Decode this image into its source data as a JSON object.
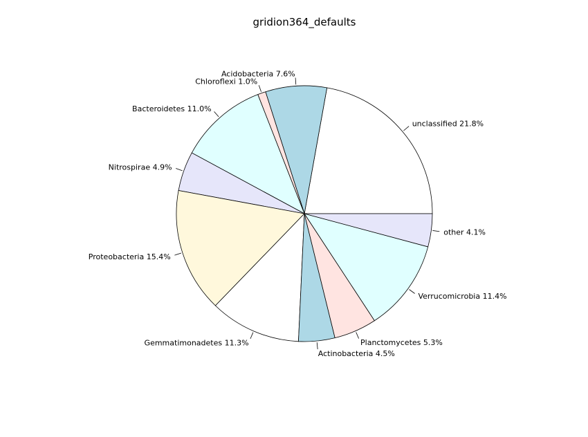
{
  "chart_data": {
    "type": "pie",
    "title": "gridion364_defaults",
    "start_angle_deg": 0,
    "direction": "counterclockwise",
    "slices": [
      {
        "label": "unclassified 21.8%",
        "value": 21.8,
        "color": "#ffffff"
      },
      {
        "label": "Acidobacteria 7.6%",
        "value": 7.6,
        "color": "#add8e6"
      },
      {
        "label": "Chloroflexi 1.0%",
        "value": 1.0,
        "color": "#ffe4e1"
      },
      {
        "label": "Bacteroidetes 11.0%",
        "value": 11.0,
        "color": "#e0ffff"
      },
      {
        "label": "Nitrospirae 4.9%",
        "value": 4.9,
        "color": "#e6e6fa"
      },
      {
        "label": "Proteobacteria 15.4%",
        "value": 15.4,
        "color": "#fff8dc"
      },
      {
        "label": "Gemmatimonadetes 11.3%",
        "value": 11.3,
        "color": "#ffffff"
      },
      {
        "label": "Actinobacteria 4.5%",
        "value": 4.5,
        "color": "#add8e6"
      },
      {
        "label": "Planctomycetes 5.3%",
        "value": 5.3,
        "color": "#ffe4e1"
      },
      {
        "label": "Verrucomicrobia 11.4%",
        "value": 11.4,
        "color": "#e0ffff"
      },
      {
        "label": "other 4.1%",
        "value": 4.1,
        "color": "#e6e6fa"
      }
    ]
  }
}
